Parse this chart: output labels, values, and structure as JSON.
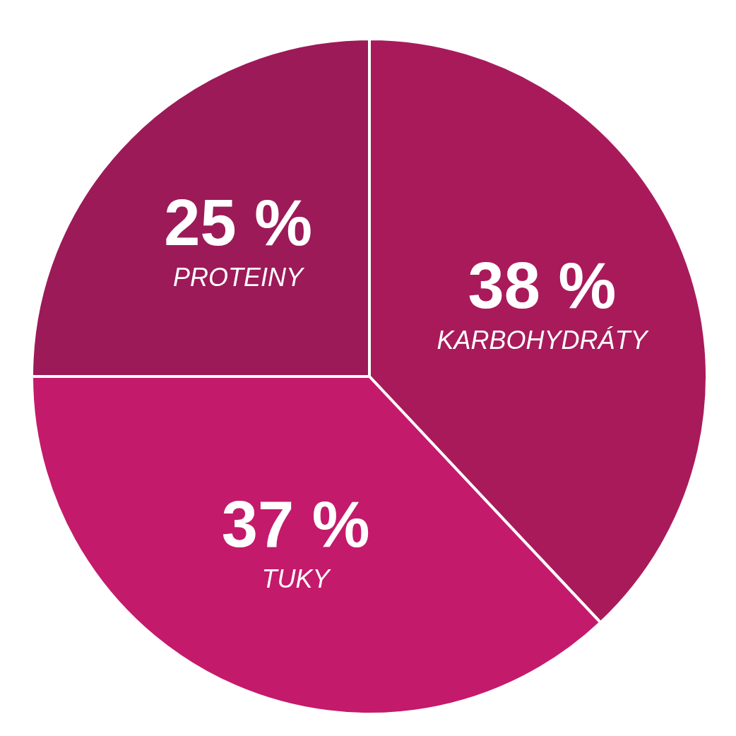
{
  "chart_data": {
    "type": "pie",
    "categories": [
      "KARBOHYDRÁTY",
      "TUKY",
      "PROTEINY"
    ],
    "values": [
      38,
      37,
      25
    ],
    "colors": [
      "#a91a5b",
      "#c41a6b",
      "#9c1a58"
    ],
    "value_labels": [
      "38 %",
      "37 %",
      "25 %"
    ]
  }
}
